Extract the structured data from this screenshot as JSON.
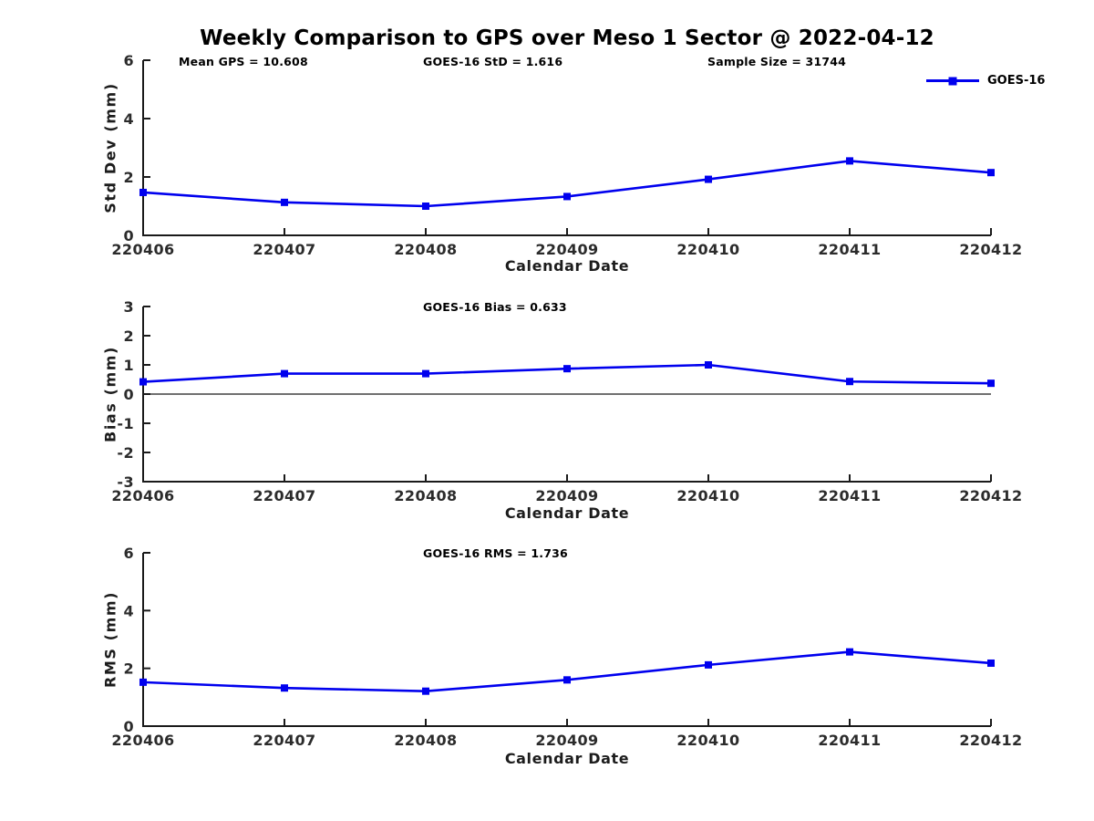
{
  "title": "Weekly Comparison to GPS over Meso 1 Sector @ 2022-04-12",
  "colors": {
    "line": "#0000EE",
    "axis": "#1a1a1a",
    "tick_text": "#2b2b2b"
  },
  "legend": {
    "label": "GOES-16",
    "marker": "square"
  },
  "chart_data": [
    {
      "type": "line",
      "annotations": [
        "Mean GPS = 10.608",
        "GOES-16 StD = 1.616",
        "Sample Size = 31744"
      ],
      "ylabel": "Std Dev (mm)",
      "xlabel": "Calendar Date",
      "categories": [
        "220406",
        "220407",
        "220408",
        "220409",
        "220410",
        "220411",
        "220412"
      ],
      "series": [
        {
          "name": "GOES-16",
          "values": [
            1.47,
            1.13,
            1.0,
            1.33,
            1.92,
            2.55,
            2.15
          ]
        }
      ],
      "ylim": [
        0,
        6
      ],
      "yticks": [
        0,
        2,
        4,
        6
      ],
      "zero_line": false,
      "grid": false,
      "legend_position": "top-right-outside"
    },
    {
      "type": "line",
      "title": "GOES-16 Bias  = 0.633",
      "ylabel": "Bias (mm)",
      "xlabel": "Calendar Date",
      "categories": [
        "220406",
        "220407",
        "220408",
        "220409",
        "220410",
        "220411",
        "220412"
      ],
      "series": [
        {
          "name": "GOES-16",
          "values": [
            0.42,
            0.7,
            0.7,
            0.87,
            1.0,
            0.43,
            0.37
          ]
        }
      ],
      "ylim": [
        -3,
        3
      ],
      "yticks": [
        3,
        2,
        1,
        0,
        -1,
        -2,
        -3
      ],
      "zero_line": true,
      "grid": false
    },
    {
      "type": "line",
      "title": "GOES-16 RMS = 1.736",
      "ylabel": "RMS (mm)",
      "xlabel": "Calendar Date",
      "categories": [
        "220406",
        "220407",
        "220408",
        "220409",
        "220410",
        "220411",
        "220412"
      ],
      "series": [
        {
          "name": "GOES-16",
          "values": [
            1.52,
            1.32,
            1.21,
            1.6,
            2.12,
            2.57,
            2.18
          ]
        }
      ],
      "ylim": [
        0,
        6
      ],
      "yticks": [
        0,
        2,
        4,
        6
      ],
      "zero_line": false,
      "grid": false
    }
  ]
}
